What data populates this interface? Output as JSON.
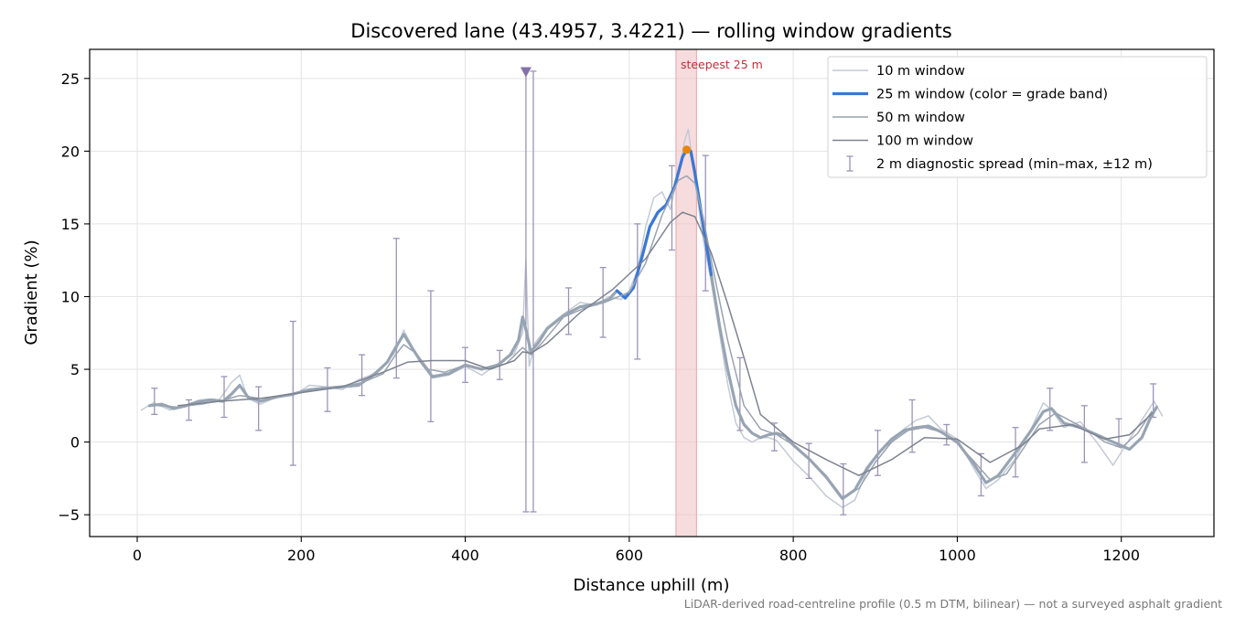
{
  "chart_data": {
    "type": "line",
    "title": "Discovered lane (43.4957, 3.4221) — rolling window gradients",
    "xlabel": "Distance uphill (m)",
    "ylabel": "Gradient (%)",
    "xlim": [
      -58,
      1313
    ],
    "ylim": [
      -6.5,
      27
    ],
    "x_ticks": [
      0,
      200,
      400,
      600,
      800,
      1000,
      1200
    ],
    "y_ticks": [
      -5,
      0,
      5,
      10,
      15,
      20,
      25
    ],
    "grid": true,
    "legend_position": "top-right",
    "footnote": "LiDAR-derived road-centreline profile (0.5 m DTM, bilinear) — not a surveyed asphalt gradient",
    "colors": {
      "w10": "#c3cad5",
      "w25_gray": "#97a4b3",
      "w25_blue": "#3a78d6",
      "w50": "#9aa3b0",
      "w100": "#7d8390",
      "errorbar": "#9c93b8",
      "marker": "#8470a8",
      "highlight": "#f2c5c8",
      "peak": "#e8850c",
      "annotation": "#c0303a"
    },
    "highlight": {
      "x_start": 657,
      "x_end": 682,
      "label": "steepest 25 m"
    },
    "peak_point": {
      "x": 670,
      "y": 20.1
    },
    "outlier_marker": {
      "x": 474,
      "y": 25.4
    },
    "series": [
      {
        "name": "10 m window",
        "x": [
          5,
          20,
          40,
          60,
          80,
          100,
          115,
          125,
          135,
          150,
          170,
          190,
          210,
          230,
          250,
          270,
          285,
          300,
          315,
          325,
          335,
          345,
          360,
          380,
          400,
          420,
          440,
          460,
          470,
          474,
          478,
          485,
          500,
          520,
          540,
          560,
          575,
          590,
          600,
          610,
          620,
          630,
          640,
          650,
          660,
          668,
          672,
          680,
          690,
          700,
          710,
          720,
          730,
          740,
          750,
          760,
          770,
          780,
          800,
          820,
          840,
          860,
          875,
          890,
          905,
          920,
          935,
          950,
          965,
          980,
          1000,
          1020,
          1035,
          1050,
          1070,
          1090,
          1105,
          1115,
          1130,
          1150,
          1170,
          1190,
          1210,
          1225,
          1240,
          1250
        ],
        "y": [
          2.2,
          2.7,
          2.2,
          2.5,
          2.6,
          2.9,
          4.1,
          4.6,
          3.0,
          2.6,
          3.1,
          3.2,
          3.9,
          3.8,
          3.6,
          4.3,
          4.6,
          5.2,
          6.2,
          7.7,
          6.6,
          5.5,
          4.4,
          4.6,
          5.2,
          4.6,
          5.4,
          6.1,
          7.5,
          12.5,
          5.2,
          6.8,
          7.9,
          8.8,
          9.6,
          9.4,
          10.0,
          9.8,
          10.4,
          11.8,
          14.8,
          16.8,
          17.2,
          16.0,
          18.5,
          20.8,
          21.5,
          18.0,
          14.0,
          11.0,
          7.5,
          4.0,
          1.3,
          0.3,
          0.0,
          0.3,
          0.3,
          0.1,
          -1.3,
          -2.4,
          -3.7,
          -4.5,
          -4.0,
          -2.0,
          -0.6,
          0.0,
          0.9,
          1.5,
          1.8,
          0.9,
          0.2,
          -1.8,
          -3.2,
          -2.6,
          -1.2,
          0.9,
          2.7,
          2.2,
          1.0,
          1.4,
          0.0,
          -1.6,
          0.2,
          1.5,
          2.8,
          1.8
        ]
      },
      {
        "name": "25 m window (color = grade band)",
        "x": [
          15,
          30,
          45,
          60,
          75,
          90,
          105,
          115,
          125,
          135,
          150,
          170,
          190,
          210,
          230,
          250,
          270,
          290,
          305,
          315,
          325,
          335,
          345,
          360,
          380,
          400,
          420,
          440,
          455,
          465,
          470,
          475,
          480,
          490,
          500,
          520,
          540,
          560,
          575,
          585,
          595,
          605,
          615,
          625,
          635,
          645,
          655,
          665,
          670,
          675,
          680,
          690,
          700,
          710,
          720,
          730,
          740,
          750,
          760,
          770,
          780,
          790,
          800,
          820,
          840,
          860,
          875,
          890,
          905,
          920,
          935,
          950,
          965,
          980,
          1000,
          1020,
          1035,
          1050,
          1070,
          1090,
          1105,
          1115,
          1130,
          1150,
          1170,
          1190,
          1210,
          1225,
          1235,
          1243
        ],
        "y": [
          2.5,
          2.6,
          2.3,
          2.5,
          2.8,
          2.9,
          2.8,
          3.3,
          3.9,
          3.1,
          2.8,
          3.1,
          3.3,
          3.6,
          3.7,
          3.8,
          3.9,
          4.7,
          5.5,
          6.5,
          7.4,
          6.5,
          5.6,
          4.5,
          4.7,
          5.3,
          5.0,
          5.3,
          6.0,
          7.0,
          8.6,
          7.5,
          6.2,
          6.9,
          7.8,
          8.7,
          9.3,
          9.5,
          9.8,
          10.4,
          9.9,
          10.6,
          12.6,
          14.8,
          15.8,
          16.3,
          17.5,
          19.6,
          20.1,
          20.0,
          18.5,
          15.0,
          11.5,
          8.0,
          5.0,
          2.5,
          1.2,
          0.6,
          0.3,
          0.5,
          0.6,
          0.4,
          -0.2,
          -1.2,
          -2.4,
          -3.9,
          -3.3,
          -1.8,
          -0.7,
          0.2,
          0.8,
          1.0,
          1.1,
          0.7,
          0.0,
          -1.5,
          -2.8,
          -2.3,
          -0.8,
          0.8,
          2.1,
          2.3,
          1.3,
          1.0,
          0.5,
          0.0,
          -0.5,
          0.3,
          1.6,
          2.4
        ]
      },
      {
        "name": "50 m window",
        "x": [
          25,
          50,
          75,
          100,
          125,
          150,
          175,
          200,
          225,
          250,
          275,
          300,
          315,
          325,
          340,
          355,
          375,
          400,
          425,
          450,
          470,
          480,
          495,
          520,
          545,
          570,
          600,
          620,
          640,
          660,
          670,
          680,
          690,
          700,
          720,
          740,
          760,
          780,
          800,
          820,
          840,
          860,
          880,
          900,
          920,
          940,
          960,
          980,
          1000,
          1020,
          1040,
          1060,
          1080,
          1100,
          1120,
          1140,
          1160,
          1180,
          1200,
          1220,
          1237
        ],
        "y": [
          2.5,
          2.4,
          2.6,
          2.8,
          3.2,
          3.0,
          3.1,
          3.4,
          3.6,
          3.8,
          4.1,
          4.7,
          6.0,
          6.7,
          6.1,
          5.0,
          4.8,
          5.3,
          5.0,
          5.4,
          6.5,
          6.0,
          6.9,
          8.6,
          9.2,
          9.6,
          10.3,
          12.3,
          15.6,
          18.0,
          18.3,
          17.8,
          15.5,
          12.5,
          7.0,
          2.5,
          0.9,
          0.5,
          -0.2,
          -1.2,
          -2.3,
          -3.8,
          -3.2,
          -1.4,
          0.0,
          0.8,
          1.0,
          0.7,
          -0.1,
          -1.3,
          -2.6,
          -2.2,
          -0.5,
          1.2,
          2.0,
          1.4,
          0.8,
          0.0,
          -0.4,
          0.6,
          2.1
        ]
      },
      {
        "name": "100 m window",
        "x": [
          50,
          100,
          150,
          200,
          250,
          300,
          330,
          360,
          400,
          430,
          460,
          470,
          480,
          500,
          540,
          580,
          620,
          650,
          665,
          680,
          700,
          720,
          740,
          760,
          800,
          840,
          880,
          920,
          960,
          1000,
          1040,
          1080,
          1100,
          1140,
          1180,
          1210,
          1238
        ],
        "y": [
          2.5,
          2.8,
          3.0,
          3.4,
          3.8,
          4.8,
          5.5,
          5.6,
          5.6,
          5.0,
          5.6,
          6.2,
          6.1,
          6.8,
          8.9,
          10.5,
          12.6,
          15.1,
          15.8,
          15.5,
          13.0,
          9.5,
          5.8,
          1.9,
          0.0,
          -1.2,
          -2.3,
          -1.2,
          0.3,
          0.2,
          -1.4,
          -0.2,
          0.9,
          1.2,
          0.2,
          0.5,
          2.0
        ]
      }
    ],
    "errorbar_series": {
      "name": "2 m diagnostic spread (min–max, ±12 m)",
      "points": [
        {
          "x": 21,
          "min": 1.9,
          "max": 3.7
        },
        {
          "x": 63,
          "min": 1.5,
          "max": 2.9
        },
        {
          "x": 106,
          "min": 1.7,
          "max": 4.5
        },
        {
          "x": 148,
          "min": 0.8,
          "max": 3.8
        },
        {
          "x": 190,
          "min": -1.6,
          "max": 8.3
        },
        {
          "x": 232,
          "min": 2.1,
          "max": 5.1
        },
        {
          "x": 274,
          "min": 3.2,
          "max": 6.0
        },
        {
          "x": 316,
          "min": 4.4,
          "max": 14.0
        },
        {
          "x": 358,
          "min": 1.4,
          "max": 10.4
        },
        {
          "x": 400,
          "min": 4.1,
          "max": 6.5
        },
        {
          "x": 442,
          "min": 4.3,
          "max": 6.3
        },
        {
          "x": 474,
          "min": -4.8,
          "max": 25.5
        },
        {
          "x": 483,
          "min": -4.8,
          "max": 25.5
        },
        {
          "x": 526,
          "min": 7.4,
          "max": 10.6
        },
        {
          "x": 568,
          "min": 7.2,
          "max": 12.0
        },
        {
          "x": 610,
          "min": 5.7,
          "max": 15.0
        },
        {
          "x": 652,
          "min": 13.2,
          "max": 19.0
        },
        {
          "x": 693,
          "min": 10.4,
          "max": 19.7
        },
        {
          "x": 735,
          "min": 0.8,
          "max": 5.8
        },
        {
          "x": 777,
          "min": -0.6,
          "max": 1.3
        },
        {
          "x": 819,
          "min": -2.5,
          "max": -0.1
        },
        {
          "x": 861,
          "min": -5.0,
          "max": -1.5
        },
        {
          "x": 903,
          "min": -2.3,
          "max": 0.8
        },
        {
          "x": 945,
          "min": -0.7,
          "max": 2.9
        },
        {
          "x": 987,
          "min": -0.2,
          "max": 1.2
        },
        {
          "x": 1029,
          "min": -3.7,
          "max": -0.8
        },
        {
          "x": 1071,
          "min": -2.4,
          "max": 1.0
        },
        {
          "x": 1113,
          "min": 0.8,
          "max": 3.7
        },
        {
          "x": 1155,
          "min": -1.4,
          "max": 2.5
        },
        {
          "x": 1197,
          "min": -0.3,
          "max": 1.6
        },
        {
          "x": 1239,
          "min": 1.7,
          "max": 4.0
        }
      ]
    },
    "legend": [
      {
        "key": "w10",
        "label": "10 m window"
      },
      {
        "key": "w25",
        "label": "25 m window (color = grade band)"
      },
      {
        "key": "w50",
        "label": "50 m window"
      },
      {
        "key": "w100",
        "label": "100 m window"
      },
      {
        "key": "err",
        "label": "2 m diagnostic spread (min–max, ±12 m)"
      }
    ]
  }
}
